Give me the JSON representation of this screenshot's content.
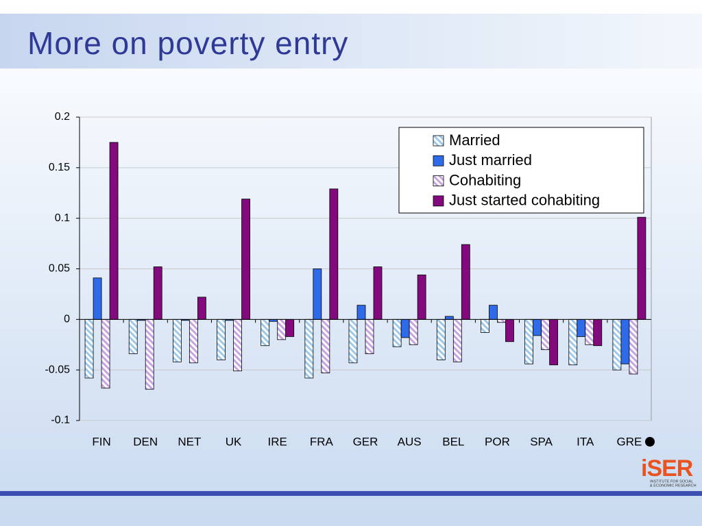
{
  "title": "More on poverty entry",
  "logo": {
    "name": "iSER",
    "line1": "INSTITUTE FOR SOCIAL",
    "line2": "& ECONOMIC RESEARCH"
  },
  "chart_data": {
    "type": "bar",
    "categories": [
      "FIN",
      "DEN",
      "NET",
      "UK",
      "IRE",
      "FRA",
      "GER",
      "AUS",
      "BEL",
      "POR",
      "SPA",
      "ITA",
      "GRE"
    ],
    "series": [
      {
        "name": "Married",
        "color": "#9cc8ea",
        "pattern": "hatch",
        "values": [
          -0.058,
          -0.034,
          -0.042,
          -0.04,
          -0.026,
          -0.058,
          -0.043,
          -0.027,
          -0.04,
          -0.013,
          -0.044,
          -0.045,
          -0.05
        ]
      },
      {
        "name": "Just married",
        "color": "#2f6be8",
        "pattern": "solid",
        "values": [
          0.041,
          -0.001,
          -0.001,
          -0.001,
          -0.002,
          0.05,
          0.014,
          -0.018,
          0.003,
          0.014,
          -0.016,
          -0.017,
          -0.044
        ]
      },
      {
        "name": "Cohabiting",
        "color": "#c9a3e0",
        "pattern": "hatch",
        "values": [
          -0.068,
          -0.069,
          -0.043,
          -0.051,
          -0.02,
          -0.053,
          -0.034,
          -0.025,
          -0.042,
          -0.003,
          -0.03,
          -0.025,
          -0.054
        ]
      },
      {
        "name": "Just started cohabiting",
        "color": "#820a7c",
        "pattern": "solid",
        "values": [
          0.175,
          0.052,
          0.022,
          0.119,
          -0.017,
          0.129,
          0.052,
          0.044,
          0.074,
          -0.022,
          -0.045,
          -0.026,
          0.101
        ]
      }
    ],
    "ylim": [
      -0.1,
      0.2
    ],
    "yticks": [
      -0.1,
      -0.05,
      0,
      0.05,
      0.1,
      0.15,
      0.2
    ],
    "grid": true,
    "legend": "upper right"
  }
}
